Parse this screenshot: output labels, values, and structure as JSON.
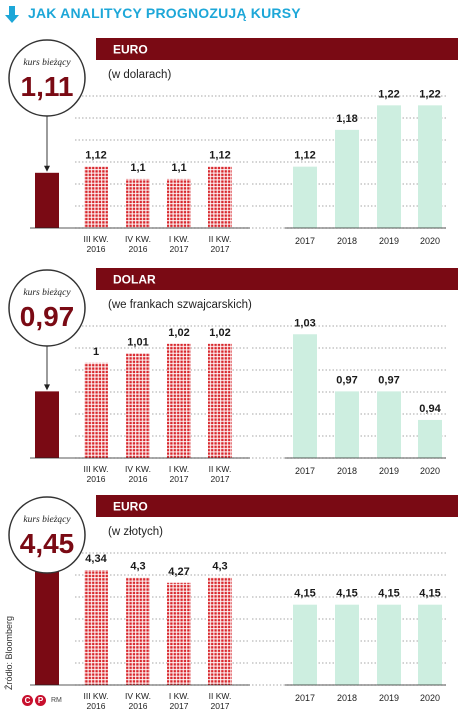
{
  "title": "JAK ANALITYCY PROGNOZUJĄ KURSY",
  "source": "Źródło: Bloomberg",
  "logo_letters": [
    "C",
    "P"
  ],
  "author": "RM",
  "current_label": "kurs bieżący",
  "colors": {
    "accent": "#7a0a14",
    "title": "#1da7d8",
    "quarter_bar": "#d8262c",
    "year_bar": "#cdeee0",
    "current_bar": "#7a0a14",
    "grid": "#8a8a8a"
  },
  "chart_data": [
    {
      "type": "bar",
      "title": "EURO",
      "subtitle": "(w dolarach)",
      "current_value": "1,11",
      "categories": [
        "",
        "III KW. 2016",
        "IV KW. 2016",
        "I KW. 2017",
        "II KW. 2017",
        "2017",
        "2018",
        "2019",
        "2020"
      ],
      "values": [
        1.11,
        1.12,
        1.1,
        1.1,
        1.12,
        1.12,
        1.18,
        1.22,
        1.22
      ],
      "value_labels": [
        "",
        "1,12",
        "1,1",
        "1,1",
        "1,12",
        "1,12",
        "1,18",
        "1,22",
        "1,22"
      ],
      "ylim": [
        1.02,
        1.245
      ]
    },
    {
      "type": "bar",
      "title": "DOLAR",
      "subtitle": "(we frankach szwajcarskich)",
      "current_value": "0,97",
      "categories": [
        "",
        "III KW. 2016",
        "IV KW. 2016",
        "I KW. 2017",
        "II KW. 2017",
        "2017",
        "2018",
        "2019",
        "2020"
      ],
      "values": [
        0.97,
        1.0,
        1.01,
        1.02,
        1.02,
        1.03,
        0.97,
        0.97,
        0.94
      ],
      "value_labels": [
        "",
        "1",
        "1,01",
        "1,02",
        "1,02",
        "1,03",
        "0,97",
        "0,97",
        "0,94"
      ],
      "ylim": [
        0.9,
        1.045
      ]
    },
    {
      "type": "bar",
      "title": "EURO",
      "subtitle": "(w złotych)",
      "current_value": "4,45",
      "categories": [
        "",
        "III KW. 2016",
        "IV KW. 2016",
        "I KW. 2017",
        "II KW. 2017",
        "2017",
        "2018",
        "2019",
        "2020"
      ],
      "values": [
        4.45,
        4.34,
        4.3,
        4.27,
        4.3,
        4.15,
        4.15,
        4.15,
        4.15
      ],
      "value_labels": [
        "",
        "4,34",
        "4,3",
        "4,27",
        "4,3",
        "4,15",
        "4,15",
        "4,15",
        "4,15"
      ],
      "ylim": [
        3.71,
        4.466
      ]
    }
  ]
}
